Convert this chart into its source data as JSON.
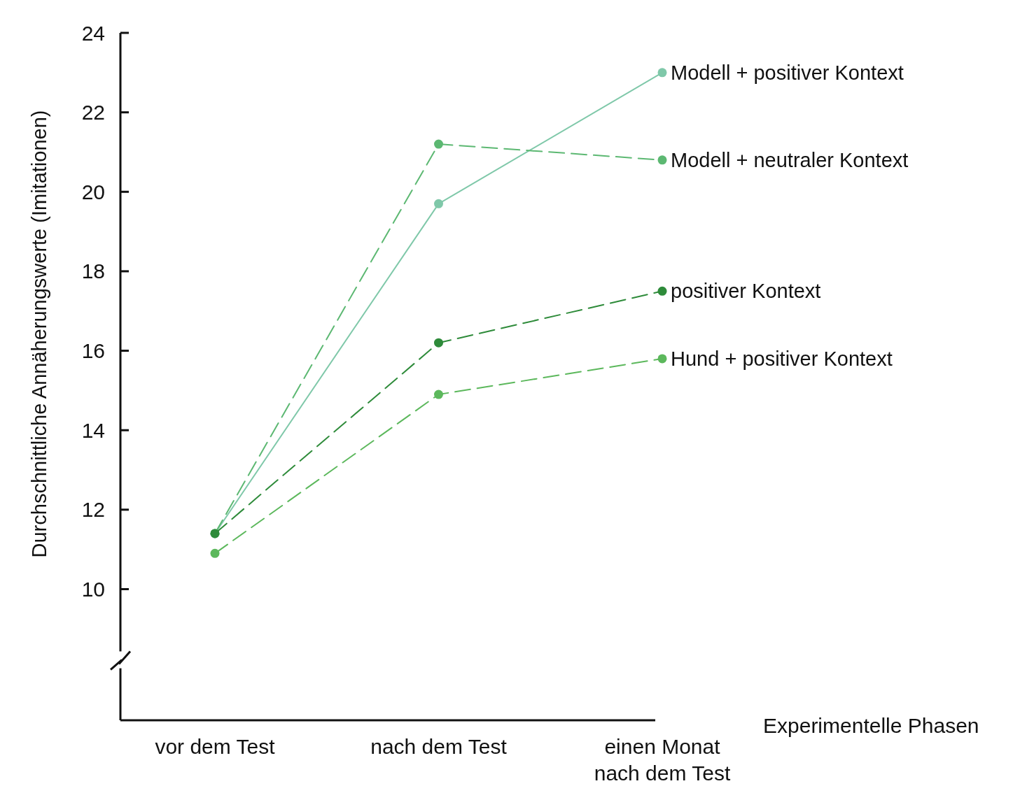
{
  "chart_data": {
    "type": "line",
    "xlabel": "Experimentelle Phasen",
    "ylabel": "Durchschnittliche Annäherungswerte (Imitationen)",
    "categories": [
      "vor dem Test",
      "nach dem Test",
      "einen Monat nach dem Test"
    ],
    "ylim": [
      6.7,
      24
    ],
    "yticks": [
      10,
      12,
      14,
      16,
      18,
      20,
      22,
      24
    ],
    "grid": false,
    "legend": "right",
    "marker": "circle",
    "series": [
      {
        "name": "Modell + positiver Kontext",
        "color": "#7fc8a9",
        "values": [
          11.4,
          19.7,
          23.0
        ],
        "line_style": "solid"
      },
      {
        "name": "Modell + neutraler Kontext",
        "color": "#5cb872",
        "values": [
          11.4,
          21.2,
          20.8
        ],
        "line_style": "dashed"
      },
      {
        "name": "positiver Kontext",
        "color": "#2e8b3a",
        "values": [
          11.4,
          16.2,
          17.5
        ],
        "line_style": "dashed"
      },
      {
        "name": "Hund + positiver Kontext",
        "color": "#5cb85c",
        "values": [
          10.9,
          14.9,
          15.8
        ],
        "line_style": "dashed"
      }
    ]
  }
}
